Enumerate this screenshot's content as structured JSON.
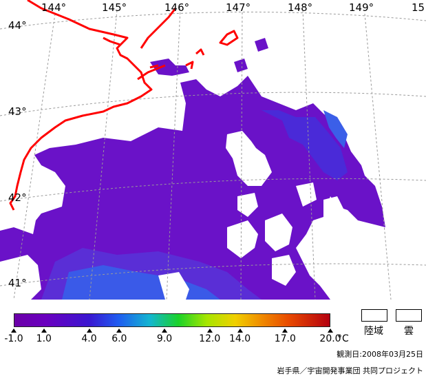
{
  "map": {
    "longitude_labels": [
      "144°",
      "145°",
      "146°",
      "147°",
      "148°",
      "149°",
      "15"
    ],
    "latitude_labels": [
      "44°",
      "43°",
      "42°",
      "41°"
    ],
    "coastline_color": "#ff0000",
    "graticule_color": "#9a9a9a"
  },
  "colorbar": {
    "ticks": [
      "-1.0",
      "1.0",
      "4.0",
      "6.0",
      "9.0",
      "12.0",
      "14.0",
      "17.0",
      "20.0"
    ],
    "unit": "°C",
    "range": [
      -1.0,
      20.0
    ]
  },
  "legend": {
    "land_label": "陸域",
    "cloud_label": "雲"
  },
  "observation_date": "観測日:2008年03月25日",
  "credit": "岩手県／宇宙開発事業団 共同プロジェクト"
}
